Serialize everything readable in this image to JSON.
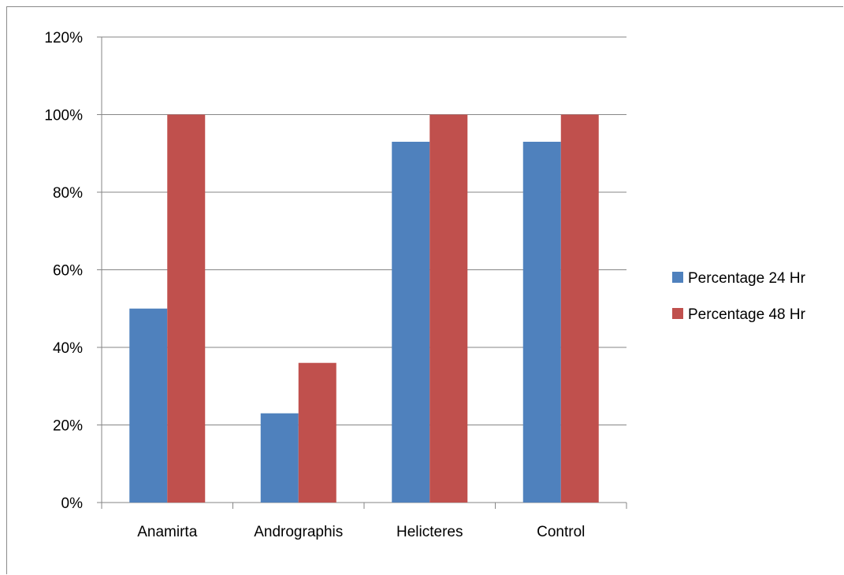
{
  "chart_data": {
    "type": "bar",
    "categories": [
      "Anamirta",
      "Andrographis",
      "Helicteres",
      "Control"
    ],
    "series": [
      {
        "name": "Percentage 24 Hr",
        "values": [
          50,
          23,
          93,
          93
        ],
        "color": "#4F81BD"
      },
      {
        "name": "Percentage 48 Hr",
        "values": [
          100,
          36,
          100,
          100
        ],
        "color": "#C0504D"
      }
    ],
    "y_ticks": [
      "0%",
      "20%",
      "40%",
      "60%",
      "80%",
      "100%",
      "120%"
    ],
    "ylim": [
      0,
      120
    ],
    "grid": true,
    "legend_position": "right",
    "title": "",
    "xlabel": "",
    "ylabel": ""
  }
}
